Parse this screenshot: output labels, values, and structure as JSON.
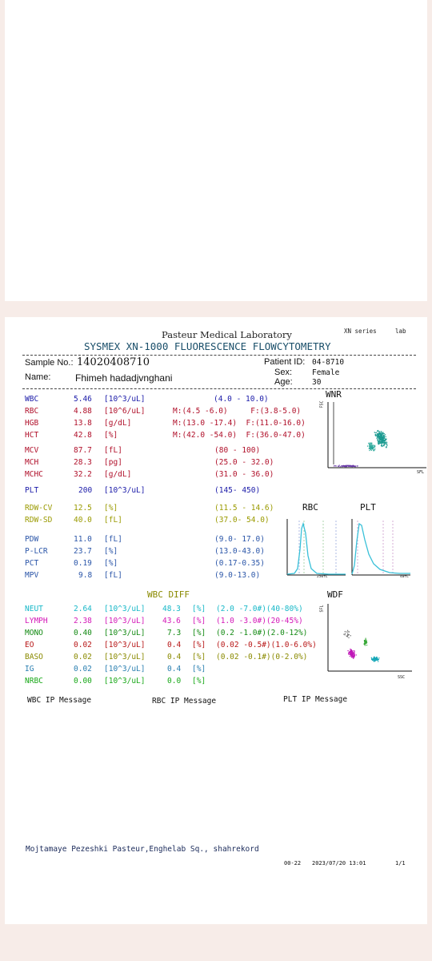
{
  "header": {
    "lab_name": "Pasteur Medical  Laboratory",
    "series": "XN series",
    "lab_tag": "lab",
    "title": "SYSMEX XN-1000 FLUORESCENCE FLOWCYTOMETRY"
  },
  "patient": {
    "sample_label": "Sample No.:",
    "sample_no": "14020408710",
    "patient_id_label": "Patient ID:",
    "patient_id": "04-8710",
    "name_label": "Name:",
    "name": "Fhimeh hadadjvnghani",
    "sex_label": "Sex:",
    "sex": "Female",
    "age_label": "Age:",
    "age": "30"
  },
  "results": [
    {
      "name": "WBC",
      "value": "5.46",
      "unit": "[10^3/uL]",
      "ref": "(4.0 - 10.0)",
      "color": "#1a1aa8"
    },
    {
      "name": "RBC",
      "value": "4.88",
      "unit": "[10^6/uL]",
      "ref": "M:(4.5 -6.0)     F:(3.8-5.0)",
      "color": "#b0102a"
    },
    {
      "name": "HGB",
      "value": "13.8",
      "unit": "[g/dL]",
      "ref": "M:(13.0 -17.4)  F:(11.0-16.0)",
      "color": "#b0102a"
    },
    {
      "name": "HCT",
      "value": "42.8",
      "unit": "[%]",
      "ref": "M:(42.0 -54.0)  F:(36.0-47.0)",
      "color": "#b0102a"
    },
    {
      "name": "MCV",
      "value": "87.7",
      "unit": "[fL]",
      "ref": "(80 - 100)",
      "color": "#b0102a"
    },
    {
      "name": "MCH",
      "value": "28.3",
      "unit": "[pg]",
      "ref": "(25.0 - 32.0)",
      "color": "#b0102a"
    },
    {
      "name": "MCHC",
      "value": "32.2",
      "unit": "[g/dL]",
      "ref": "(31.0 - 36.0)",
      "color": "#b0102a"
    },
    {
      "name": "PLT",
      "value": "200",
      "unit": "[10^3/uL]",
      "ref": "(145- 450)",
      "color": "#1a1aa8"
    },
    {
      "name": "RDW-CV",
      "value": "12.5",
      "unit": "[%]",
      "ref": "(11.5 - 14.6)",
      "color": "#9a9a00"
    },
    {
      "name": "RDW-SD",
      "value": "40.0",
      "unit": "[fL]",
      "ref": "(37.0- 54.0)",
      "color": "#9a9a00"
    },
    {
      "name": "PDW",
      "value": "11.0",
      "unit": "[fL]",
      "ref": "(9.0- 17.0)",
      "color": "#2a55a8"
    },
    {
      "name": "P-LCR",
      "value": "23.7",
      "unit": "[%]",
      "ref": "(13.0-43.0)",
      "color": "#2a55a8"
    },
    {
      "name": "PCT",
      "value": "0.19",
      "unit": "[%]",
      "ref": "(0.17-0.35)",
      "color": "#2a55a8"
    },
    {
      "name": "MPV",
      "value": "9.8",
      "unit": "[fL]",
      "ref": "(9.0-13.0)",
      "color": "#2a55a8"
    }
  ],
  "wbc_diff": {
    "title": "WBC DIFF",
    "rows": [
      {
        "name": "NEUT",
        "abs": "2.64",
        "unit": "[10^3/uL]",
        "pct": "48.3",
        "pct_unit": "[%]",
        "ref": "(2.0 -7.0#)(40-80%)",
        "color": "#18b8c8"
      },
      {
        "name": "LYMPH",
        "abs": "2.38",
        "unit": "[10^3/uL]",
        "pct": "43.6",
        "pct_unit": "[%]",
        "ref": "(1.0 -3.0#)(20-45%)",
        "color": "#d418b8"
      },
      {
        "name": "MONO",
        "abs": "0.40",
        "unit": "[10^3/uL]",
        "pct": "7.3",
        "pct_unit": "[%]",
        "ref": "(0.2 -1.0#)(2.0-12%)",
        "color": "#138a13"
      },
      {
        "name": "EO",
        "abs": "0.02",
        "unit": "[10^3/uL]",
        "pct": "0.4",
        "pct_unit": "[%]",
        "ref": "(0.02 -0.5#)(1.0-6.0%)",
        "color": "#b81818"
      },
      {
        "name": "BASO",
        "abs": "0.02",
        "unit": "[10^3/uL]",
        "pct": "0.4",
        "pct_unit": "[%]",
        "ref": "(0.02 -0.1#)(0-2.0%)",
        "color": "#8a8a00"
      },
      {
        "name": "IG",
        "abs": "0.02",
        "unit": "[10^3/uL]",
        "pct": "0.4",
        "pct_unit": "[%]",
        "ref": "",
        "color": "#2a7fb0"
      },
      {
        "name": "NRBC",
        "abs": "0.00",
        "unit": "[10^3/uL]",
        "pct": "0.0",
        "pct_unit": "[%]",
        "ref": "",
        "color": "#18a818"
      }
    ]
  },
  "graphs": {
    "wnr_title": "WNR",
    "wnr_y": "FSC",
    "wnr_x": "SFL",
    "rbc_title": "RBC",
    "plt_title": "PLT",
    "rbc_x": "250fL",
    "plt_x": "40fL",
    "wdf_title": "WDF",
    "wdf_y": "SFL",
    "wdf_x": "SSC"
  },
  "messages": {
    "wbc": "WBC IP Message",
    "rbc": "RBC IP Message",
    "plt": "PLT IP Message"
  },
  "footer": {
    "address": "Mojtamaye Pezeshki Pasteur,Enghelab Sq., shahrekord",
    "code": "00-22",
    "datetime": "2023/07/20 13:01",
    "page": "1/1"
  }
}
